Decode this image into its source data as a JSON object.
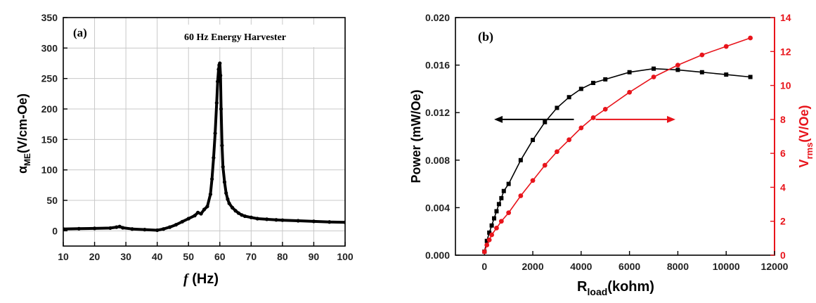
{
  "chart_data": [
    {
      "type": "scatter",
      "panel_label": "(a)",
      "annotation": "60 Hz Energy Harvester",
      "xlabel_main": "f",
      "xlabel_unit": " (Hz)",
      "ylabel_prefix": "α",
      "ylabel_sub": "ME",
      "ylabel_rest": "(V/cm-Oe)",
      "xlim": [
        10,
        100
      ],
      "ylim": [
        -25,
        350
      ],
      "xticks": [
        10,
        20,
        30,
        40,
        50,
        60,
        70,
        80,
        90,
        100
      ],
      "yticks": [
        0,
        50,
        100,
        150,
        200,
        250,
        300,
        350
      ],
      "grid": true,
      "marker_color": "#000000",
      "series": [
        {
          "x": [
            10,
            15,
            20,
            25,
            27,
            28,
            29,
            32,
            36,
            40,
            42,
            44,
            46,
            48,
            50,
            52,
            53,
            54,
            55,
            56,
            57,
            57.5,
            58,
            58.5,
            59,
            59.3,
            59.6,
            59.8,
            60,
            60.2,
            60.4,
            60.7,
            61,
            61.5,
            62,
            62.5,
            63,
            64,
            65,
            66,
            67,
            68,
            70,
            72,
            75,
            78,
            80,
            85,
            90,
            95,
            100
          ],
          "y": [
            3,
            3.5,
            4,
            4.5,
            6,
            7,
            5,
            3,
            2,
            1,
            3,
            6,
            10,
            15,
            20,
            25,
            30,
            28,
            35,
            40,
            60,
            85,
            120,
            160,
            210,
            245,
            265,
            272,
            275,
            255,
            200,
            140,
            105,
            80,
            62,
            52,
            45,
            38,
            33,
            29,
            26,
            24,
            22,
            20,
            19,
            18,
            17.5,
            16.5,
            15.5,
            14.5,
            14
          ]
        }
      ]
    },
    {
      "type": "line",
      "panel_label": "(b)",
      "xlabel_main": "R",
      "xlabel_sub": "load",
      "xlabel_rest": "(kohm)",
      "ylabel_left": "Power (mW/Oe)",
      "ylabel_right_main": "V",
      "ylabel_right_sub": "rms",
      "ylabel_right_rest": "(V/Oe)",
      "xlim": [
        -1200,
        12000
      ],
      "xticks": [
        0,
        2000,
        4000,
        6000,
        8000,
        10000,
        12000
      ],
      "ylim_left": [
        0,
        0.02
      ],
      "yticks_left": [
        "0.000",
        "0.004",
        "0.008",
        "0.012",
        "0.016",
        "0.020"
      ],
      "ylim_right": [
        0,
        14
      ],
      "yticks_right": [
        0,
        2,
        4,
        6,
        8,
        10,
        12,
        14
      ],
      "grid": false,
      "series": [
        {
          "axis": "left",
          "color": "#000000",
          "marker": "square",
          "x": [
            0,
            100,
            200,
            300,
            400,
            500,
            600,
            700,
            800,
            1000,
            1500,
            2000,
            2500,
            3000,
            3500,
            4000,
            4500,
            5000,
            6000,
            7000,
            8000,
            9000,
            10000,
            11000
          ],
          "y": [
            0.0003,
            0.0012,
            0.0019,
            0.0025,
            0.0031,
            0.0037,
            0.0043,
            0.0048,
            0.0054,
            0.006,
            0.008,
            0.0097,
            0.0112,
            0.0124,
            0.0133,
            0.014,
            0.0145,
            0.0148,
            0.0154,
            0.0157,
            0.0156,
            0.0154,
            0.0152,
            0.015
          ]
        },
        {
          "axis": "right",
          "color": "#e8141b",
          "marker": "circle",
          "x": [
            0,
            100,
            200,
            300,
            500,
            700,
            1000,
            1500,
            2000,
            2500,
            3000,
            3500,
            4000,
            4500,
            5000,
            6000,
            7000,
            8000,
            9000,
            10000,
            11000
          ],
          "y": [
            0.2,
            0.6,
            0.9,
            1.2,
            1.6,
            2.0,
            2.5,
            3.5,
            4.4,
            5.3,
            6.1,
            6.8,
            7.5,
            8.1,
            8.6,
            9.6,
            10.5,
            11.2,
            11.8,
            12.3,
            12.8
          ]
        }
      ],
      "arrows": [
        {
          "direction": "left",
          "color": "#000000",
          "x_from": 3700,
          "x_to": 400,
          "y_right": 8.0
        },
        {
          "direction": "right",
          "color": "#e8141b",
          "x_from": 4600,
          "x_to": 7900,
          "y_right": 8.0
        }
      ]
    }
  ]
}
